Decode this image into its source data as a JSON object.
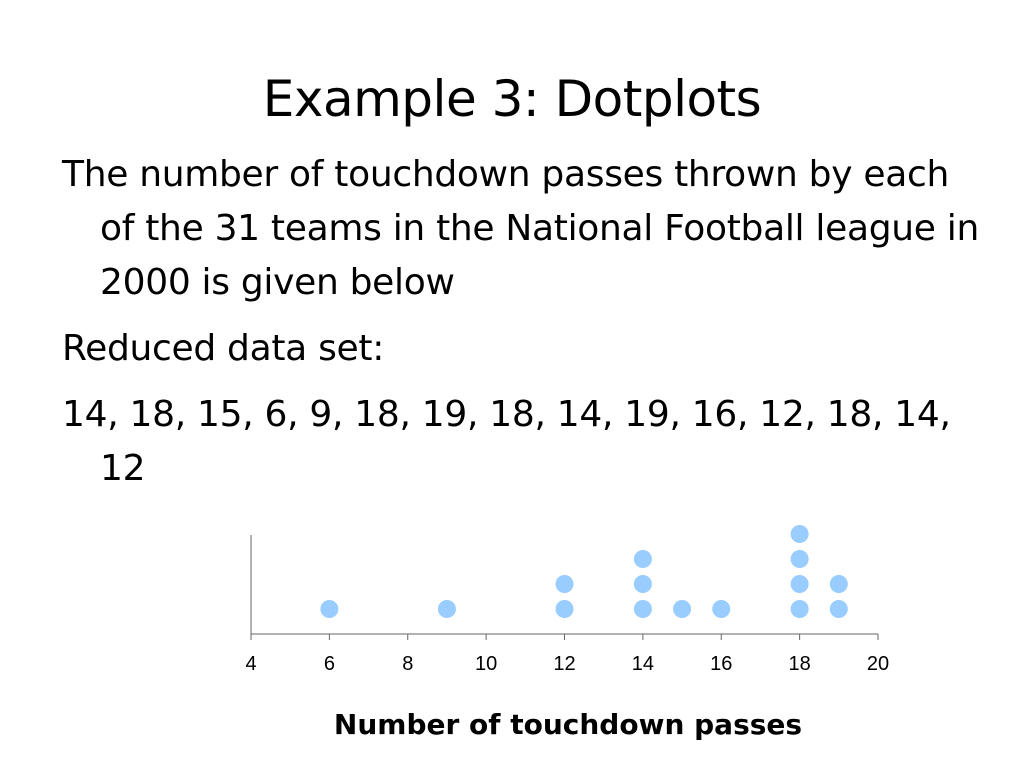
{
  "slide": {
    "title": "Example 3: Dotplots",
    "paragraphs": [
      "The number of touchdown passes thrown by each of the 31 teams in the National Football league in 2000 is given below",
      "Reduced data set:",
      "14, 18, 15, 6, 9, 18, 19, 18, 14, 19, 16, 12, 18, 14, 12"
    ]
  },
  "chart_data": {
    "type": "scatter",
    "subtype": "dotplot",
    "title": "",
    "xlabel": "Number of touchdown passes",
    "ylabel": "",
    "xlim": [
      4,
      20
    ],
    "xticks": [
      4,
      6,
      8,
      10,
      12,
      14,
      16,
      18,
      20
    ],
    "tick_labels": [
      "4",
      "6",
      "8",
      "10",
      "12",
      "14",
      "16",
      "18",
      "20"
    ],
    "values": [
      14,
      18,
      15,
      6,
      9,
      18,
      19,
      18,
      14,
      19,
      16,
      12,
      18,
      14,
      12
    ],
    "dot_color": "#99CCFF",
    "grid": false,
    "legend": "none"
  }
}
